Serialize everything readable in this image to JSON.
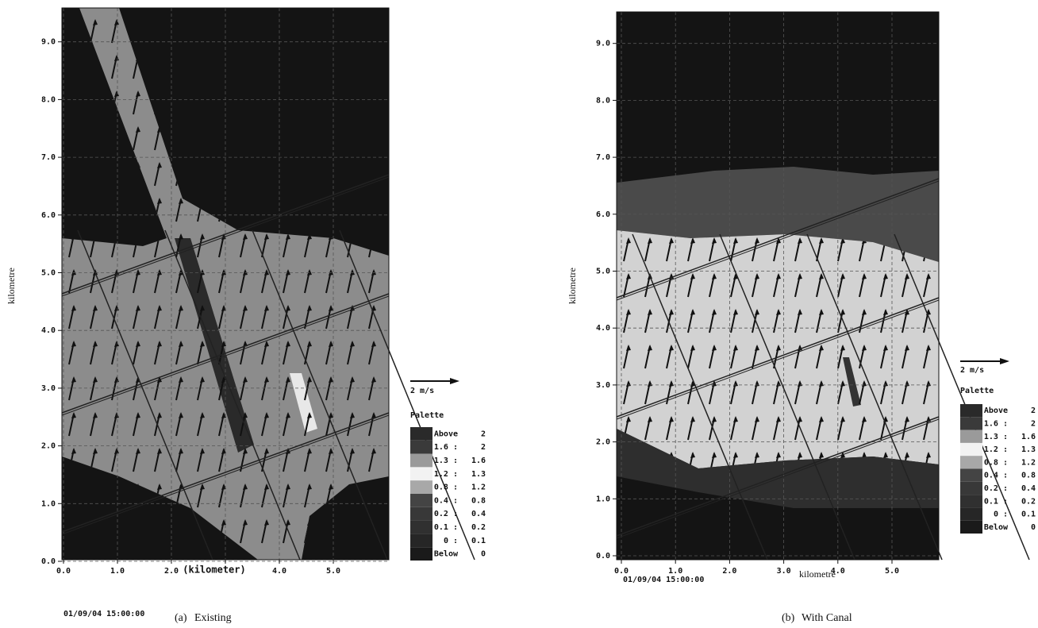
{
  "panels": [
    {
      "ylabel": "kilometre",
      "xlabel": "(kilometer)",
      "yticks": [
        "0.0",
        "1.0",
        "2.0",
        "3.0",
        "4.0",
        "5.0",
        "6.0",
        "7.0",
        "8.0",
        "9.0"
      ],
      "xticks": [
        "0.0",
        "1.0",
        "2.0",
        null,
        "4.0",
        "5.0"
      ],
      "scale": "2 m/s",
      "palette_title": "Palette",
      "palette": [
        {
          "from": "Above",
          "to": "2",
          "color": "#2a2a2a"
        },
        {
          "from": "1.6 :",
          "to": "2",
          "color": "#3a3a3a"
        },
        {
          "from": "1.3 :",
          "to": "1.6",
          "color": "#9a9a9a"
        },
        {
          "from": "1.2 :",
          "to": "1.3",
          "color": "#f2f2f2"
        },
        {
          "from": "0.8 :",
          "to": "1.2",
          "color": "#a8a8a8"
        },
        {
          "from": "0.4 :",
          "to": "0.8",
          "color": "#444444"
        },
        {
          "from": "0.2 :",
          "to": "0.4",
          "color": "#383838"
        },
        {
          "from": "0.1 :",
          "to": "0.2",
          "color": "#303030"
        },
        {
          "from": "0 :",
          "to": "0.1",
          "color": "#262626"
        },
        {
          "from": "Below",
          "to": "0",
          "color": "#1a1a1a"
        }
      ],
      "timestamp": "01/09/04 15:00:00",
      "caption_label": "(a)",
      "caption": "Existing"
    },
    {
      "ylabel": "kilometre",
      "xlabel": "kilometre",
      "yticks": [
        "0.0",
        "1.0",
        "2.0",
        "3.0",
        "4.0",
        "5.0",
        "6.0",
        "7.0",
        "8.0",
        "9.0"
      ],
      "xticks": [
        "0.0",
        "1.0",
        "2.0",
        "3.0",
        "4.0",
        "5.0"
      ],
      "scale": "2 m/s",
      "palette_title": "Palette",
      "palette": [
        {
          "from": "Above",
          "to": "2",
          "color": "#2a2a2a"
        },
        {
          "from": "1.6 :",
          "to": "2",
          "color": "#3a3a3a"
        },
        {
          "from": "1.3 :",
          "to": "1.6",
          "color": "#9a9a9a"
        },
        {
          "from": "1.2 :",
          "to": "1.3",
          "color": "#f2f2f2"
        },
        {
          "from": "0.8 :",
          "to": "1.2",
          "color": "#a8a8a8"
        },
        {
          "from": "0.4 :",
          "to": "0.8",
          "color": "#444444"
        },
        {
          "from": "0.2 :",
          "to": "0.4",
          "color": "#383838"
        },
        {
          "from": "0.1 :",
          "to": "0.2",
          "color": "#303030"
        },
        {
          "from": "0 :",
          "to": "0.1",
          "color": "#262626"
        },
        {
          "from": "Below",
          "to": "0",
          "color": "#1a1a1a"
        }
      ],
      "timestamp": "01/09/04 15:00:00",
      "caption_label": "(b)",
      "caption": "With Canal"
    }
  ]
}
